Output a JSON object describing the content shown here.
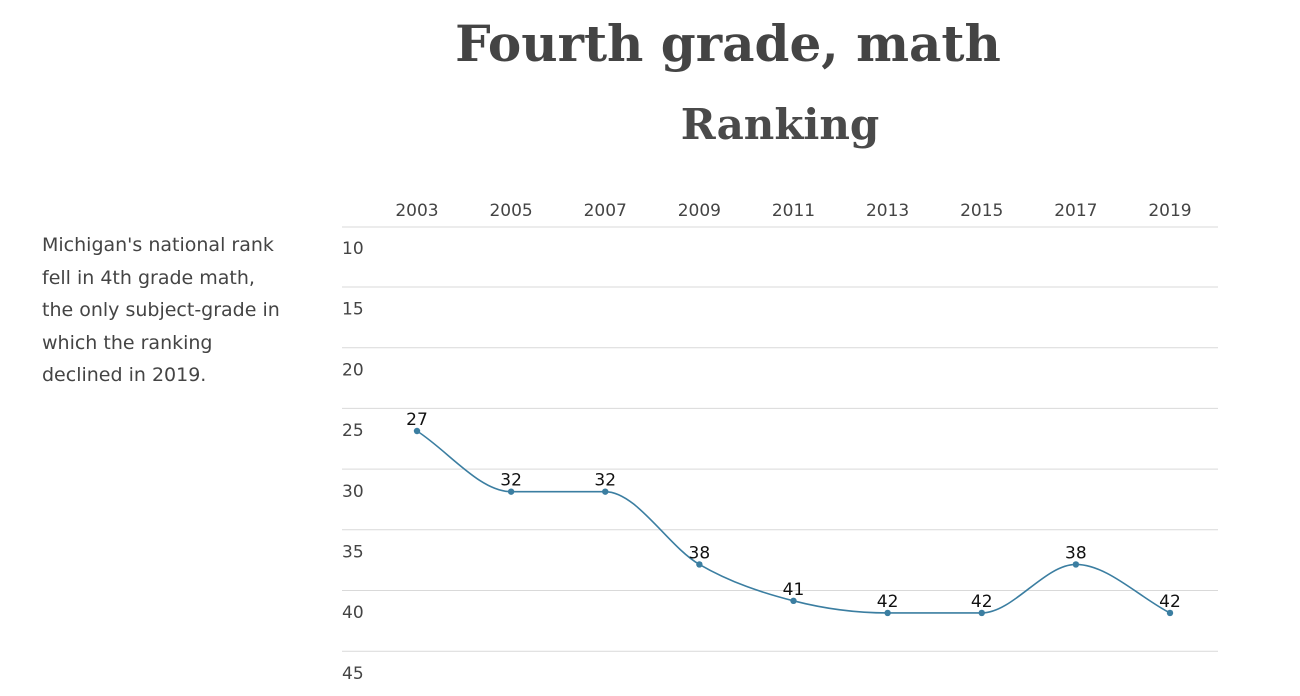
{
  "title": "Fourth grade, math",
  "subtitle": "Ranking",
  "note": "Michigan's national rank fell in 4th grade math, the only subject-grade in which the ranking declined in 2019.",
  "colors": {
    "line": "#3b7ea1",
    "grid": "#d9d9d9",
    "text": "#444444"
  },
  "chart_data": {
    "type": "line",
    "title": "Ranking",
    "xlabel": "",
    "ylabel": "",
    "x": [
      "2003",
      "2005",
      "2007",
      "2009",
      "2011",
      "2013",
      "2015",
      "2017",
      "2019"
    ],
    "series": [
      {
        "values": [
          27,
          32,
          32,
          38,
          41,
          42,
          42,
          38,
          42
        ]
      }
    ],
    "yticks": [
      10,
      15,
      20,
      25,
      30,
      35,
      40,
      45
    ],
    "ylim": [
      10,
      45
    ],
    "y_inverted": true,
    "x_axis_position": "top",
    "grid": true,
    "legend": "none",
    "data_labels": true
  }
}
